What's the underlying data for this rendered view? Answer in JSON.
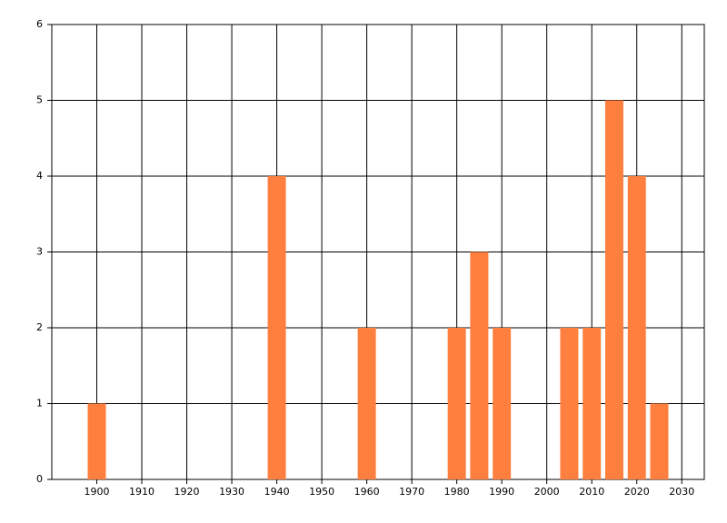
{
  "chart_data": {
    "type": "bar",
    "x": [
      1900,
      1940,
      1960,
      1980,
      1985,
      1990,
      2005,
      2010,
      2015,
      2020,
      2025
    ],
    "values": [
      1,
      4,
      2,
      2,
      3,
      2,
      2,
      2,
      5,
      4,
      1
    ],
    "color": "#ff7f3f",
    "xlim": [
      1890,
      2035
    ],
    "xticks": [
      1900,
      1910,
      1920,
      1930,
      1940,
      1950,
      1960,
      1970,
      1980,
      1990,
      2000,
      2010,
      2020,
      2030
    ],
    "ylim": [
      0,
      6
    ],
    "yticks": [
      0,
      1,
      2,
      3,
      4,
      5,
      6
    ],
    "grid": true
  }
}
